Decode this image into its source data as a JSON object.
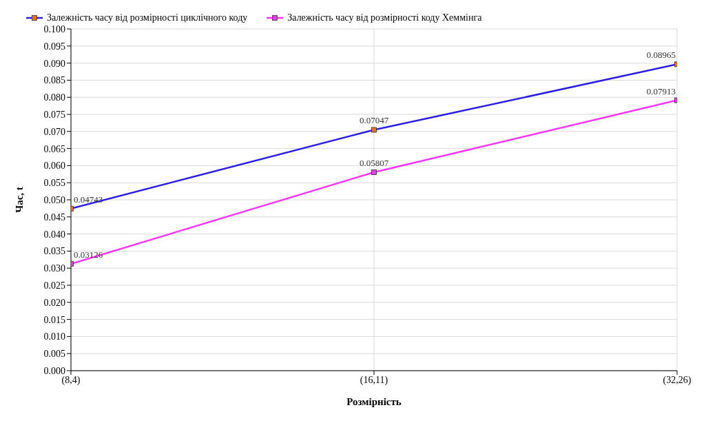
{
  "chart_data": {
    "type": "line",
    "xlabel": "Розмірність",
    "ylabel": "Час, t",
    "categories": [
      "(8,4)",
      "(16,11)",
      "(32,26)"
    ],
    "series": [
      {
        "name": "Залежність часу від розмірності циклічного коду",
        "color": "#2b1fe6",
        "colors": [
          "#e8701e",
          "#e8701e",
          "#e8701e"
        ],
        "values": [
          0.04743,
          0.07047,
          0.08965
        ]
      },
      {
        "name": "Залежність часу від розмірності коду Хеммінга",
        "color": "#ff33ff",
        "colors": [
          "#e040e0",
          "#e040e0",
          "#e040e0"
        ],
        "values": [
          0.03126,
          0.05807,
          0.07913
        ]
      }
    ],
    "ylim": [
      0,
      0.1
    ],
    "yticks": [
      {
        "value": 0,
        "label": "0.000"
      },
      {
        "value": 0.005,
        "label": "0.005"
      },
      {
        "value": 0.01,
        "label": "0.010"
      },
      {
        "value": 0.015,
        "label": "0.015"
      },
      {
        "value": 0.02,
        "label": "0.020"
      },
      {
        "value": 0.025,
        "label": "0.025"
      },
      {
        "value": 0.03,
        "label": "0.030"
      },
      {
        "value": 0.035,
        "label": "0.035"
      },
      {
        "value": 0.04,
        "label": "0.040"
      },
      {
        "value": 0.045,
        "label": "0.045"
      },
      {
        "value": 0.05,
        "label": "0.050"
      },
      {
        "value": 0.055,
        "label": "0.055"
      },
      {
        "value": 0.06,
        "label": "0.060"
      },
      {
        "value": 0.065,
        "label": "0.065"
      },
      {
        "value": 0.07,
        "label": "0.070"
      },
      {
        "value": 0.075,
        "label": "0.075"
      },
      {
        "value": 0.08,
        "label": "0.080"
      },
      {
        "value": 0.085,
        "label": "0.085"
      },
      {
        "value": 0.09,
        "label": "0.090"
      },
      {
        "value": 0.095,
        "label": "0.095"
      },
      {
        "value": 0.1,
        "label": "0.100"
      }
    ],
    "grid": true,
    "legend": "top left",
    "marker": "square",
    "line_style": "solid",
    "data_labels": true
  }
}
